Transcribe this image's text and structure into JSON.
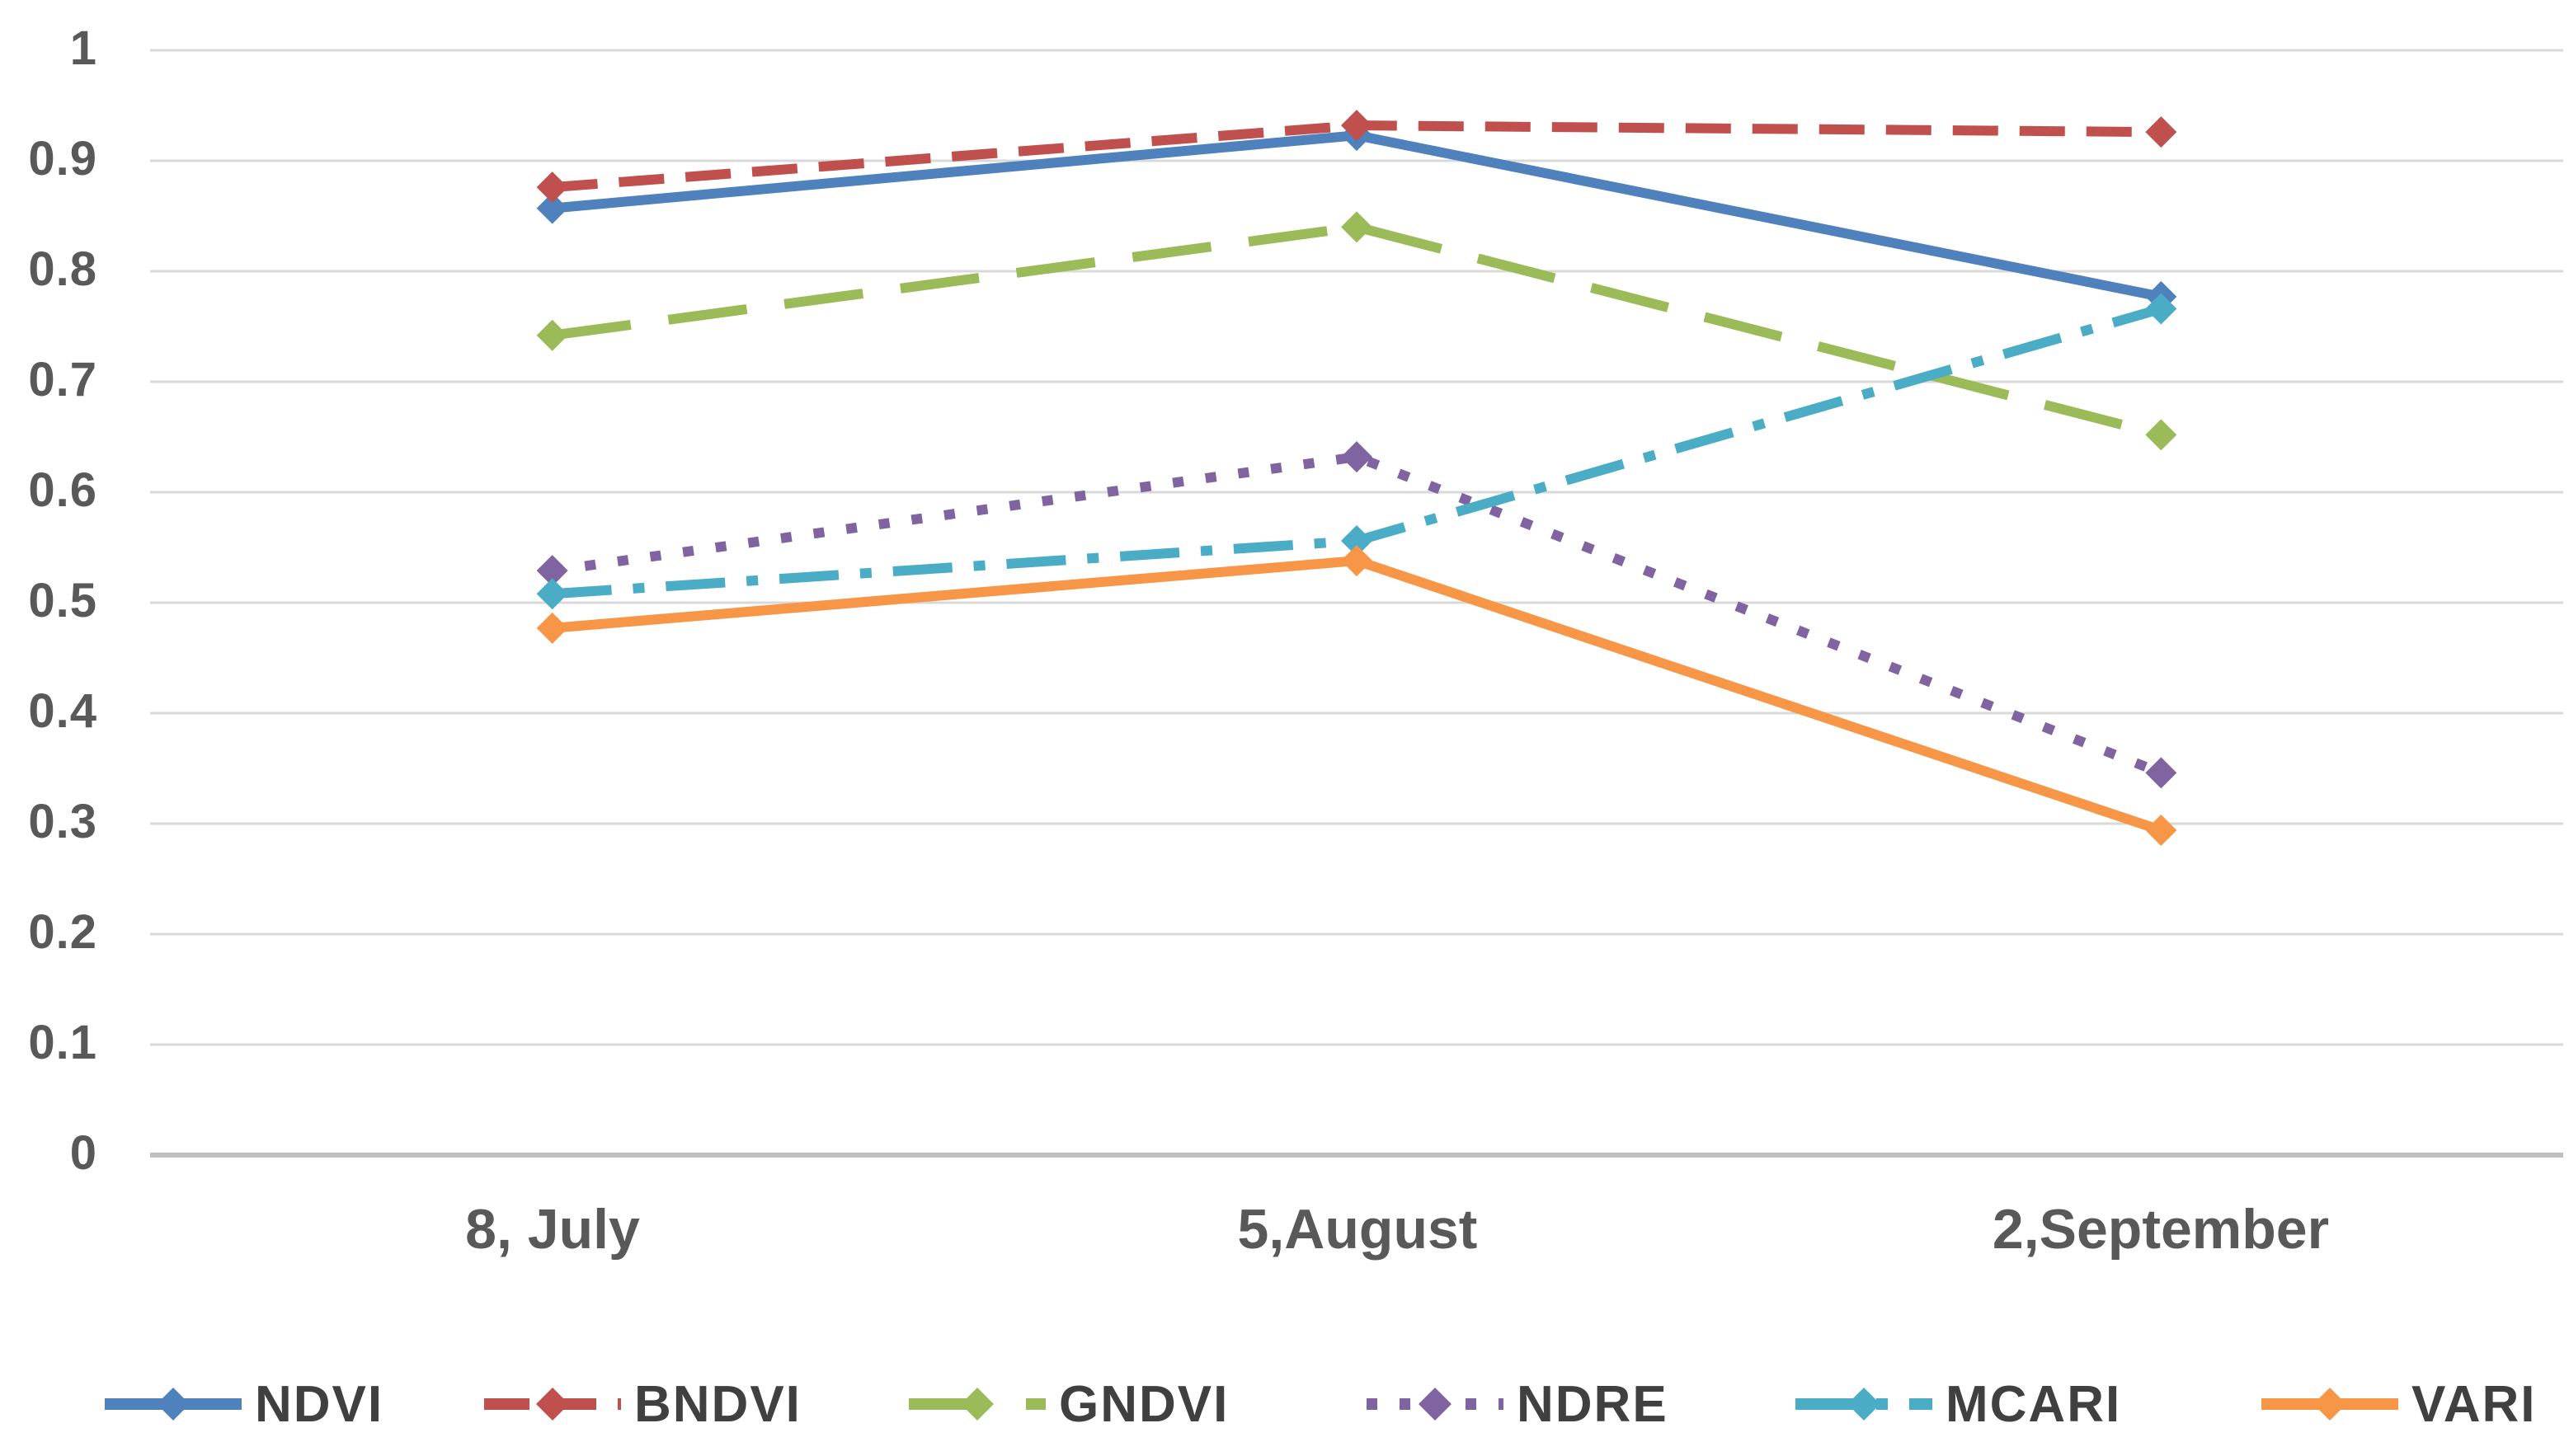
{
  "chart_data": {
    "type": "line",
    "title": "",
    "xlabel": "",
    "ylabel": "",
    "categories": [
      "8, July",
      "5,August",
      "2,September"
    ],
    "y_tick_labels": [
      "1",
      "0.9",
      "0.8",
      "0.7",
      "0.6",
      "0.5",
      "0.4",
      "0.3",
      "0.2",
      "0.1",
      "0"
    ],
    "y_tick_values": [
      1,
      0.9,
      0.8,
      0.7,
      0.6,
      0.5,
      0.4,
      0.3,
      0.2,
      0.1,
      0
    ],
    "ylim": [
      0,
      1
    ],
    "grid": "horizontal",
    "legend_position": "bottom",
    "marker": "diamond",
    "series": [
      {
        "name": "NDVI",
        "color": "#4F81BD",
        "line_style": "solid",
        "values": [
          0.857,
          0.923,
          0.777
        ]
      },
      {
        "name": "BNDVI",
        "color": "#C0504D",
        "line_style": "dashed",
        "values": [
          0.876,
          0.932,
          0.926
        ]
      },
      {
        "name": "GNDVI",
        "color": "#9BBB59",
        "line_style": "long-dash",
        "values": [
          0.742,
          0.84,
          0.652
        ]
      },
      {
        "name": "NDRE",
        "color": "#8064A2",
        "line_style": "dotted",
        "values": [
          0.529,
          0.632,
          0.346
        ]
      },
      {
        "name": "MCARI",
        "color": "#4BACC6",
        "line_style": "dash-dot",
        "values": [
          0.508,
          0.556,
          0.766
        ]
      },
      {
        "name": "VARI",
        "color": "#F79646",
        "line_style": "solid",
        "values": [
          0.477,
          0.538,
          0.294
        ]
      }
    ]
  },
  "colors": {
    "gridline": "#D9D9D9",
    "axis_baseline": "#BFBFBF",
    "tick_text": "#595959",
    "legend_text": "#404040",
    "background": "#FFFFFF"
  }
}
